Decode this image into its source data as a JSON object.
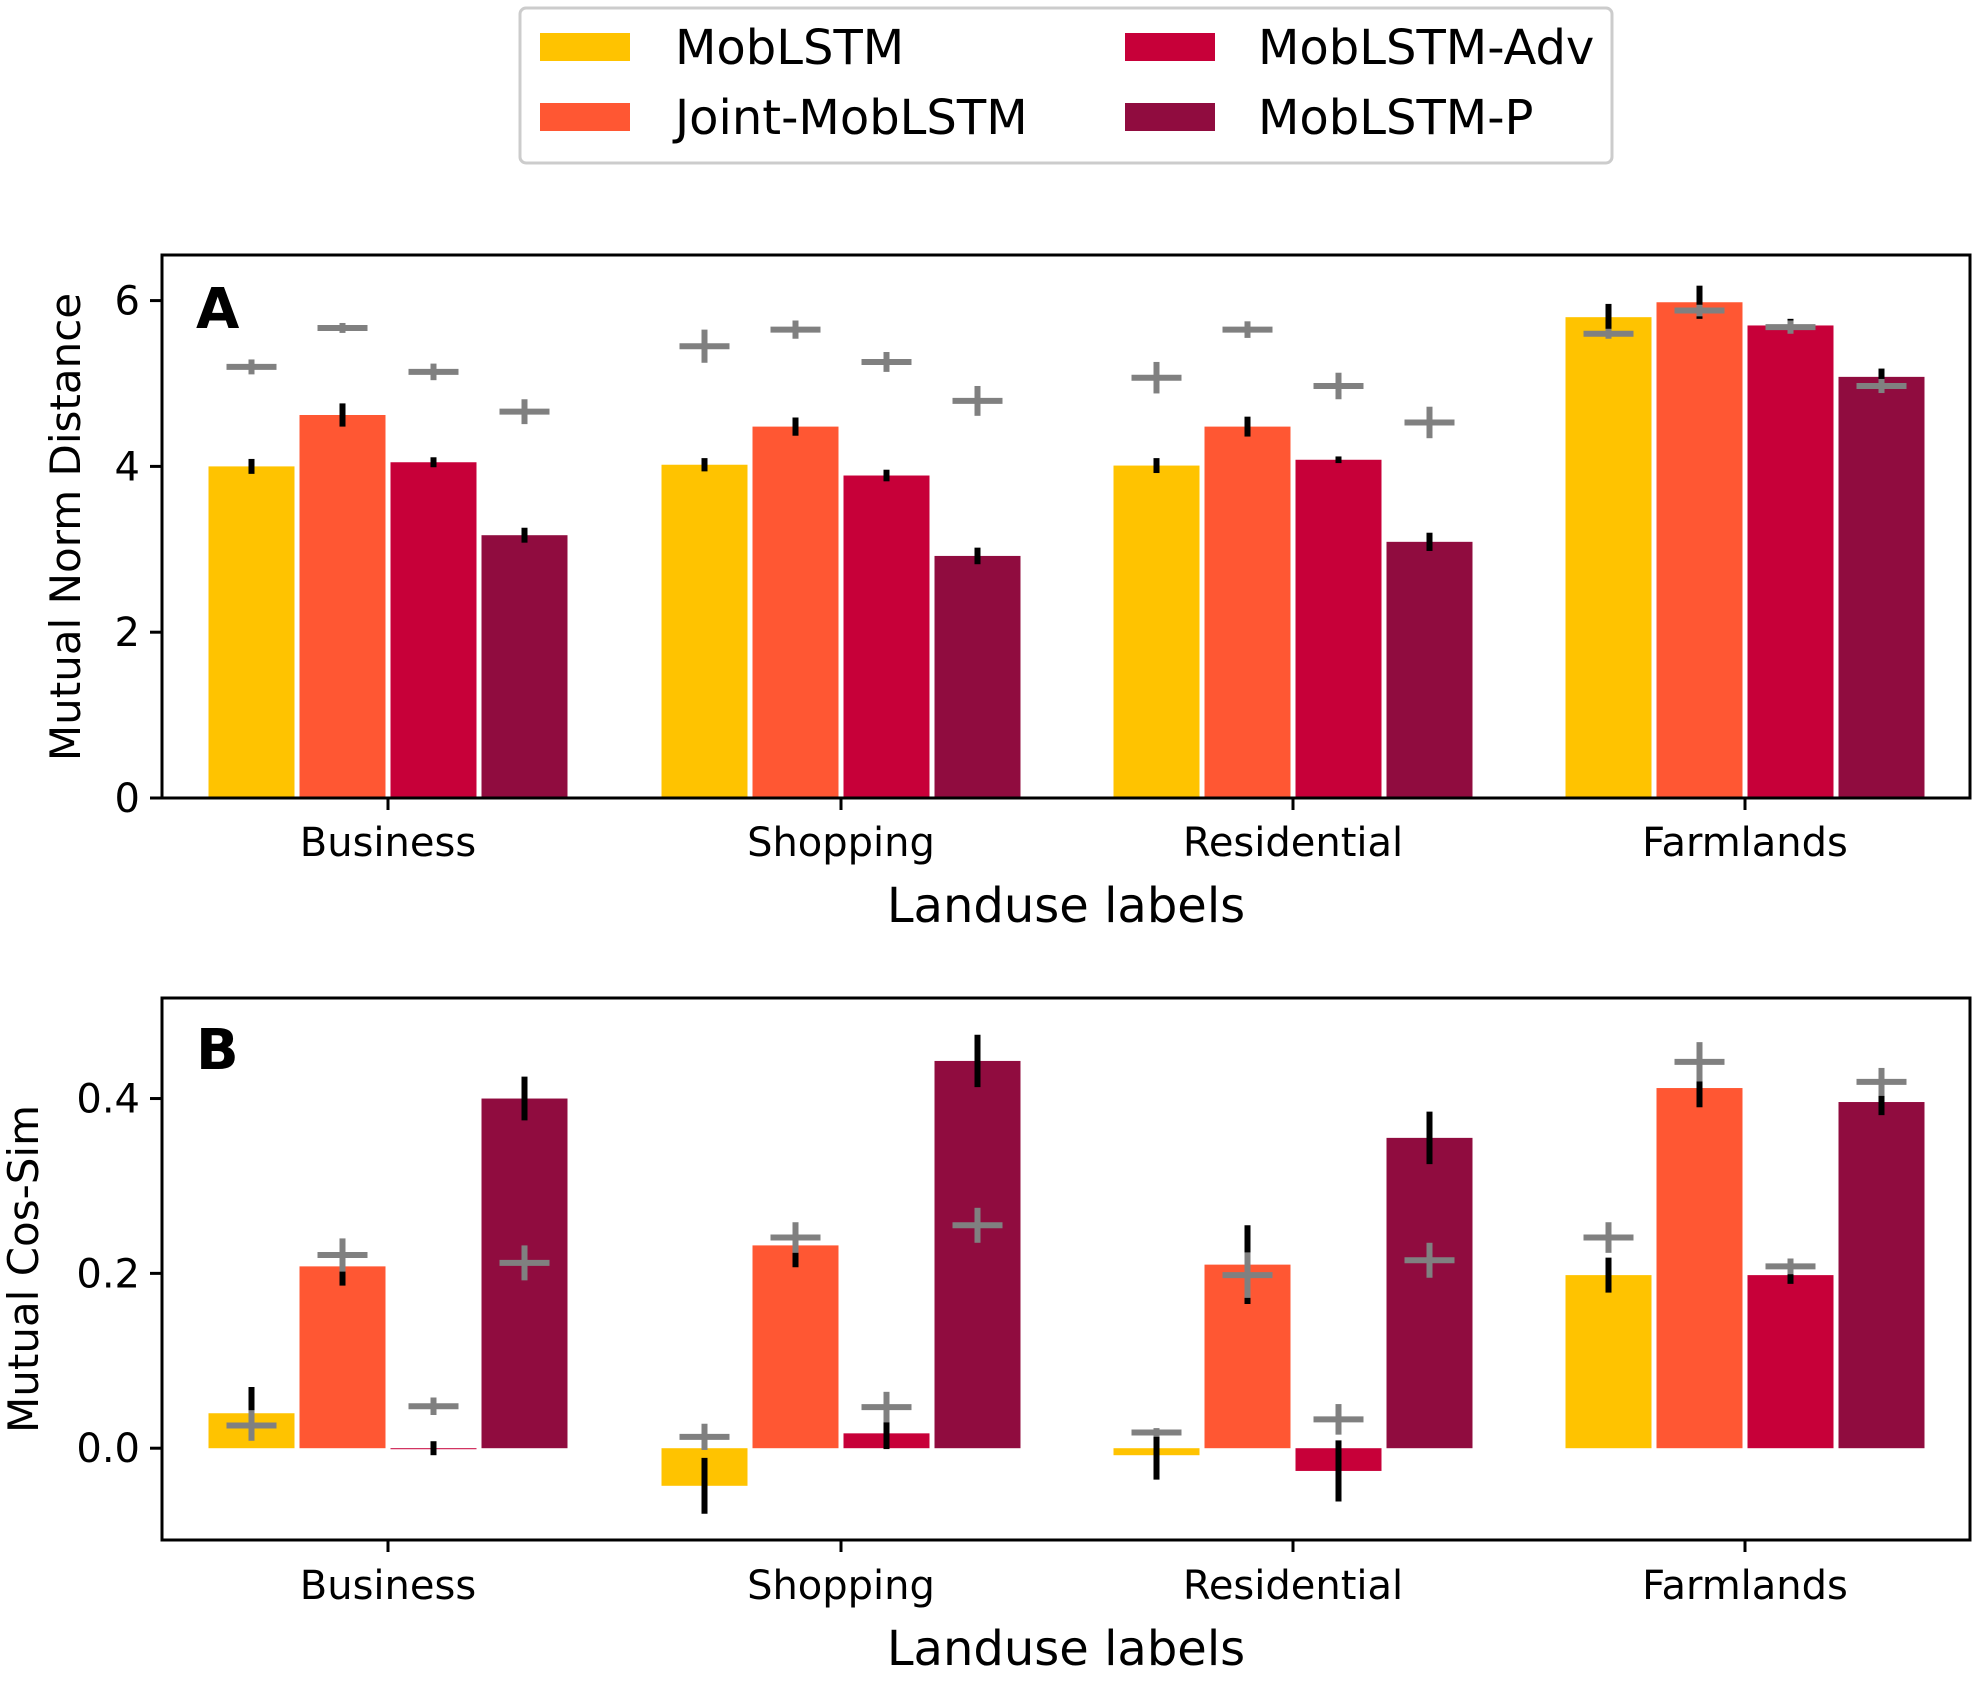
{
  "legend": {
    "entries": [
      {
        "name": "MobLSTM",
        "color": "#FFC300"
      },
      {
        "name": "Joint-MobLSTM",
        "color": "#FF5733"
      },
      {
        "name": "MobLSTM-Adv",
        "color": "#C70039"
      },
      {
        "name": "MobLSTM-P",
        "color": "#900C3F"
      }
    ]
  },
  "colors": {
    "errorbar": "#000000",
    "marker": "#808080"
  },
  "chart_data": [
    {
      "type": "bar",
      "panel_label": "A",
      "categories": [
        "Business",
        "Shopping",
        "Residential",
        "Farmlands"
      ],
      "xlabel": "Landuse labels",
      "ylabel": "Mutual Norm Distance",
      "ylim": [
        0,
        6.55
      ],
      "yticks": [
        0,
        2,
        4,
        6
      ],
      "ytick_labels": [
        "0",
        "2",
        "4",
        "6"
      ],
      "series": [
        {
          "name": "MobLSTM",
          "values": [
            4.0,
            4.02,
            4.01,
            5.8
          ],
          "error": [
            0.09,
            0.08,
            0.09,
            0.16
          ],
          "marker": [
            5.2,
            5.45,
            5.07,
            5.6
          ],
          "marker_size": [
            0.18,
            0.4,
            0.38,
            0.12
          ]
        },
        {
          "name": "Joint-MobLSTM",
          "values": [
            4.62,
            4.48,
            4.48,
            5.98
          ],
          "error": [
            0.14,
            0.11,
            0.12,
            0.2
          ],
          "marker": [
            5.67,
            5.65,
            5.65,
            5.88
          ],
          "marker_size": [
            0.12,
            0.22,
            0.2,
            0.14
          ]
        },
        {
          "name": "MobLSTM-Adv",
          "values": [
            4.05,
            3.89,
            4.08,
            5.7
          ],
          "error": [
            0.06,
            0.07,
            0.04,
            0.08
          ],
          "marker": [
            5.14,
            5.26,
            4.97,
            5.68
          ],
          "marker_size": [
            0.2,
            0.24,
            0.32,
            0.16
          ]
        },
        {
          "name": "MobLSTM-P",
          "values": [
            3.17,
            2.92,
            3.09,
            5.08
          ],
          "error": [
            0.09,
            0.1,
            0.11,
            0.1
          ],
          "marker": [
            4.66,
            4.79,
            4.53,
            4.97
          ],
          "marker_size": [
            0.3,
            0.36,
            0.38,
            0.17
          ]
        }
      ]
    },
    {
      "type": "bar",
      "panel_label": "B",
      "categories": [
        "Business",
        "Shopping",
        "Residential",
        "Farmlands"
      ],
      "xlabel": "Landuse labels",
      "ylabel": "Mutual Cos-Sim",
      "ylim": [
        -0.105,
        0.515
      ],
      "yticks": [
        0.0,
        0.2,
        0.4
      ],
      "ytick_labels": [
        "0.0",
        "0.2",
        "0.4"
      ],
      "series": [
        {
          "name": "MobLSTM",
          "values": [
            0.04,
            -0.043,
            -0.008,
            0.198
          ],
          "error": [
            0.03,
            0.032,
            0.028,
            0.02
          ],
          "marker": [
            0.026,
            0.013,
            0.018,
            0.241
          ],
          "marker_size": [
            0.035,
            0.03,
            0.01,
            0.035
          ]
        },
        {
          "name": "Joint-MobLSTM",
          "values": [
            0.208,
            0.232,
            0.21,
            0.412
          ],
          "error": [
            0.022,
            0.025,
            0.045,
            0.022
          ],
          "marker": [
            0.221,
            0.241,
            0.198,
            0.442
          ],
          "marker_size": [
            0.038,
            0.035,
            0.052,
            0.045
          ]
        },
        {
          "name": "MobLSTM-Adv",
          "values": [
            0.0,
            0.017,
            -0.026,
            0.198
          ],
          "error": [
            0.008,
            0.018,
            0.035,
            0.01
          ],
          "marker": [
            0.048,
            0.047,
            0.033,
            0.208
          ],
          "marker_size": [
            0.02,
            0.035,
            0.035,
            0.018
          ]
        },
        {
          "name": "MobLSTM-P",
          "values": [
            0.4,
            0.443,
            0.355,
            0.396
          ],
          "error": [
            0.025,
            0.03,
            0.03,
            0.015
          ],
          "marker": [
            0.212,
            0.255,
            0.215,
            0.419
          ],
          "marker_size": [
            0.04,
            0.04,
            0.04,
            0.032
          ]
        }
      ]
    }
  ]
}
